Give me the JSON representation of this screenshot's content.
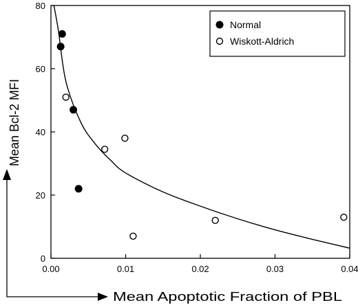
{
  "chart_data": {
    "type": "scatter",
    "xlabel": "Mean Apoptotic Fraction of PBL",
    "ylabel": "Mean Bcl-2 MFI",
    "xlim": [
      0.0,
      0.04
    ],
    "ylim": [
      0,
      80
    ],
    "x_ticks": [
      "0.00",
      "0.01",
      "0.02",
      "0.03",
      "0.04"
    ],
    "y_ticks": [
      "0",
      "20",
      "40",
      "60",
      "80"
    ],
    "x_tick_values": [
      0.0,
      0.01,
      0.02,
      0.03,
      0.04
    ],
    "y_tick_values": [
      0,
      20,
      40,
      60,
      80
    ],
    "grid": false,
    "legend_position": "top-right",
    "series": [
      {
        "name": "Normal",
        "marker": "filled-circle",
        "color": "#000000",
        "points": [
          {
            "x": 0.0015,
            "y": 71
          },
          {
            "x": 0.0013,
            "y": 67
          },
          {
            "x": 0.003,
            "y": 47
          },
          {
            "x": 0.0037,
            "y": 22
          }
        ]
      },
      {
        "name": "Wiskott-Aldrich",
        "marker": "open-circle",
        "color": "#000000",
        "points": [
          {
            "x": 0.002,
            "y": 51
          },
          {
            "x": 0.0072,
            "y": 34.5
          },
          {
            "x": 0.0099,
            "y": 38
          },
          {
            "x": 0.011,
            "y": 7
          },
          {
            "x": 0.022,
            "y": 12
          },
          {
            "x": 0.0392,
            "y": 13
          }
        ]
      }
    ],
    "fit_curve": {
      "type": "power",
      "points": [
        {
          "x": 0.0004,
          "y": 80
        },
        {
          "x": 0.001,
          "y": 72
        },
        {
          "x": 0.002,
          "y": 56
        },
        {
          "x": 0.004,
          "y": 43
        },
        {
          "x": 0.006,
          "y": 36
        },
        {
          "x": 0.008,
          "y": 31
        },
        {
          "x": 0.01,
          "y": 27
        },
        {
          "x": 0.015,
          "y": 21
        },
        {
          "x": 0.02,
          "y": 16.5
        },
        {
          "x": 0.025,
          "y": 12.5
        },
        {
          "x": 0.03,
          "y": 9
        },
        {
          "x": 0.035,
          "y": 6
        },
        {
          "x": 0.04,
          "y": 3.2
        }
      ]
    }
  }
}
